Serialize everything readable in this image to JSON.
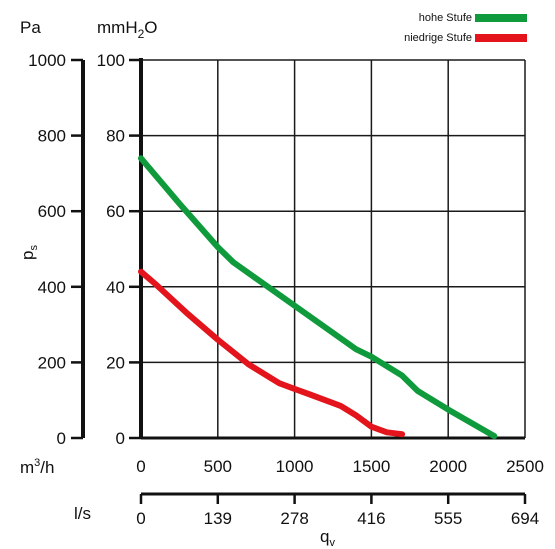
{
  "chart_data": {
    "type": "line",
    "units": {
      "pa": "Pa",
      "mmh2o_base": "mmH",
      "mmh2o_sub": "2",
      "mmh2o_tail": "O",
      "m3h_base": "m",
      "m3h_sup": "3",
      "m3h_tail": "/h",
      "ls": "l/s"
    },
    "ylabel": {
      "base": "p",
      "sub": "s"
    },
    "xlabel": {
      "base": "q",
      "sub": "v"
    },
    "pa_ticks": [
      "1000",
      "800",
      "600",
      "400",
      "200",
      "0"
    ],
    "mmh2o_ticks": [
      "100",
      "80",
      "60",
      "40",
      "20",
      "0"
    ],
    "m3h_ticks": [
      "0",
      "500",
      "1000",
      "1500",
      "2000",
      "2500"
    ],
    "ls_ticks": [
      "0",
      "139",
      "278",
      "416",
      "555",
      "694"
    ],
    "xlim": [
      0,
      2500
    ],
    "ylim": [
      0,
      100
    ],
    "series": [
      {
        "name": "hohe Stufe",
        "color": "#0f9a3c",
        "points": [
          [
            0,
            74
          ],
          [
            250,
            62
          ],
          [
            500,
            50.5
          ],
          [
            600,
            46.5
          ],
          [
            1000,
            35
          ],
          [
            1400,
            23.5
          ],
          [
            1500,
            21.5
          ],
          [
            1700,
            16.5
          ],
          [
            1800,
            12.5
          ],
          [
            2000,
            7.5
          ],
          [
            2300,
            0.5
          ]
        ]
      },
      {
        "name": "niedrige Stufe",
        "color": "#e3141b",
        "points": [
          [
            0,
            44
          ],
          [
            100,
            40.5
          ],
          [
            300,
            33
          ],
          [
            500,
            26
          ],
          [
            700,
            19.5
          ],
          [
            900,
            14.5
          ],
          [
            1000,
            13
          ],
          [
            1100,
            11.5
          ],
          [
            1300,
            8.5
          ],
          [
            1400,
            6
          ],
          [
            1500,
            3
          ],
          [
            1600,
            1.5
          ],
          [
            1700,
            1
          ]
        ]
      }
    ]
  }
}
